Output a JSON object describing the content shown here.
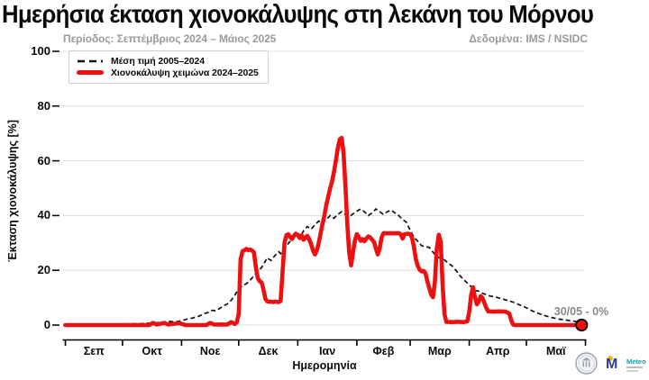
{
  "header": {
    "title": "Ημερήσια έκταση χιονοκάλυψης στη λεκάνη του Μόρνου",
    "subtitle_left": "Περίοδος: Σεπτέμβριος 2024 – Μάιος 2025",
    "subtitle_right": "Δεδομένα: IMS / NSIDC"
  },
  "footer": {
    "meteo_label": "Meteo"
  },
  "colors": {
    "season": "#ee1010",
    "mean": "#111111",
    "grid": "#e0e0e0",
    "muted": "#9a9a9a",
    "meteo_blue": "#2a3f90",
    "meteo_teal": "#16a0a5",
    "meteo_yellow": "#f5b80c"
  },
  "chart_data": {
    "type": "line",
    "title": "Ημερήσια έκταση χιονοκάλυψης στη λεκάνη του Μόρνου",
    "xlabel": "Ημερομηνία",
    "ylabel": "Έκταση χιονοκάλυψης [%]",
    "ylim": [
      0,
      100
    ],
    "y_ticks": [
      0,
      20,
      40,
      60,
      80,
      100
    ],
    "grid": "horizontal",
    "legend_position": "upper-left",
    "x_unit": "days since Sep 1 2024",
    "x_month_boundaries": [
      0,
      30,
      61,
      91,
      122,
      153,
      181,
      212,
      242,
      273
    ],
    "x_month_labels": [
      "Σεπ",
      "Οκτ",
      "Νοε",
      "Δεκ",
      "Ιαν",
      "Φεβ",
      "Μαρ",
      "Απρ",
      "Μαϊ"
    ],
    "end_marker": {
      "day": 271,
      "value": 0,
      "label": "30/05 - 0%"
    },
    "series": [
      {
        "name": "Μέση τιμή 2005–2024",
        "style": "dashed-black",
        "points": [
          [
            0,
            0.3
          ],
          [
            10,
            0.3
          ],
          [
            20,
            0.4
          ],
          [
            30,
            0.4
          ],
          [
            38,
            0.5
          ],
          [
            44,
            0.7
          ],
          [
            48,
            0.9
          ],
          [
            52,
            1.1
          ],
          [
            55,
            1.3
          ],
          [
            58,
            1.2
          ],
          [
            61,
            1.6
          ],
          [
            64,
            2.2
          ],
          [
            67,
            2.6
          ],
          [
            70,
            3.2
          ],
          [
            73,
            4.2
          ],
          [
            75,
            4.6
          ],
          [
            77,
            5.4
          ],
          [
            79,
            5.2
          ],
          [
            81,
            6.1
          ],
          [
            83,
            7
          ],
          [
            85,
            7.7
          ],
          [
            87,
            9
          ],
          [
            89,
            11
          ],
          [
            91,
            13.2
          ],
          [
            93,
            14.4
          ],
          [
            95,
            15.1
          ],
          [
            97,
            16.4
          ],
          [
            99,
            18
          ],
          [
            101,
            19.6
          ],
          [
            103,
            21
          ],
          [
            105,
            23.4
          ],
          [
            106,
            24.6
          ],
          [
            107,
            24
          ],
          [
            108,
            23.6
          ],
          [
            110,
            25.4
          ],
          [
            112,
            26.8
          ],
          [
            113,
            26.1
          ],
          [
            115,
            27.6
          ],
          [
            117,
            29.8
          ],
          [
            119,
            31.4
          ],
          [
            121,
            33
          ],
          [
            122,
            32.4
          ],
          [
            123,
            31.8
          ],
          [
            125,
            34.4
          ],
          [
            127,
            36
          ],
          [
            129,
            35
          ],
          [
            131,
            36.6
          ],
          [
            133,
            38
          ],
          [
            135,
            37.1
          ],
          [
            137,
            38.6
          ],
          [
            139,
            40
          ],
          [
            141,
            39
          ],
          [
            143,
            40.4
          ],
          [
            145,
            41.4
          ],
          [
            147,
            40.4
          ],
          [
            149,
            39.6
          ],
          [
            151,
            40.6
          ],
          [
            153,
            41.6
          ],
          [
            155,
            42.4
          ],
          [
            157,
            41.4
          ],
          [
            159,
            40
          ],
          [
            161,
            41
          ],
          [
            163,
            42.4
          ],
          [
            165,
            41.4
          ],
          [
            167,
            40.4
          ],
          [
            169,
            41.4
          ],
          [
            171,
            42
          ],
          [
            173,
            41
          ],
          [
            175,
            40
          ],
          [
            177,
            38.6
          ],
          [
            179,
            37.6
          ],
          [
            181,
            34.6
          ],
          [
            183,
            32
          ],
          [
            185,
            30.6
          ],
          [
            187,
            29
          ],
          [
            189,
            28.6
          ],
          [
            191,
            28.4
          ],
          [
            193,
            26.6
          ],
          [
            195,
            25
          ],
          [
            197,
            24.4
          ],
          [
            199,
            23.8
          ],
          [
            201,
            22.6
          ],
          [
            203,
            21.6
          ],
          [
            205,
            20
          ],
          [
            207,
            18.2
          ],
          [
            209,
            16.6
          ],
          [
            211,
            15.4
          ],
          [
            213,
            14
          ],
          [
            215,
            12.6
          ],
          [
            217,
            12.4
          ],
          [
            219,
            11.6
          ],
          [
            221,
            11.1
          ],
          [
            223,
            10.6
          ],
          [
            225,
            10.4
          ],
          [
            227,
            10
          ],
          [
            229,
            9.6
          ],
          [
            231,
            9.2
          ],
          [
            233,
            8.8
          ],
          [
            235,
            8.4
          ],
          [
            237,
            7.8
          ],
          [
            239,
            7.2
          ],
          [
            241,
            6.6
          ],
          [
            243,
            6
          ],
          [
            245,
            5.2
          ],
          [
            247,
            4.6
          ],
          [
            249,
            4.1
          ],
          [
            251,
            3.6
          ],
          [
            253,
            3.2
          ],
          [
            255,
            2.8
          ],
          [
            257,
            2.5
          ],
          [
            259,
            2.2
          ],
          [
            261,
            2
          ],
          [
            263,
            1.8
          ],
          [
            265,
            1.6
          ],
          [
            267,
            1.4
          ],
          [
            269,
            1.2
          ],
          [
            271,
            1
          ],
          [
            273,
            0.9
          ]
        ]
      },
      {
        "name": "Χιονοκάλυψη χειμώνα 2024–2025",
        "style": "solid-red",
        "points": [
          [
            0,
            0
          ],
          [
            15,
            0
          ],
          [
            30,
            0
          ],
          [
            44,
            0
          ],
          [
            46,
            0.8
          ],
          [
            48,
            0.2
          ],
          [
            52,
            0.8
          ],
          [
            54,
            0.2
          ],
          [
            60,
            0.7
          ],
          [
            63,
            0
          ],
          [
            74,
            0
          ],
          [
            76,
            0.8
          ],
          [
            78,
            0.2
          ],
          [
            85,
            0.2
          ],
          [
            87,
            1.1
          ],
          [
            89,
            0.4
          ],
          [
            90,
            1
          ],
          [
            91,
            4
          ],
          [
            92,
            24
          ],
          [
            93,
            27
          ],
          [
            94,
            27.3
          ],
          [
            95,
            27.8
          ],
          [
            96,
            27.4
          ],
          [
            97,
            27.6
          ],
          [
            98,
            27.2
          ],
          [
            99,
            26.6
          ],
          [
            100,
            21
          ],
          [
            101,
            17.2
          ],
          [
            102,
            16
          ],
          [
            103,
            15.6
          ],
          [
            104,
            13
          ],
          [
            105,
            9.6
          ],
          [
            106,
            8.7
          ],
          [
            107,
            8.5
          ],
          [
            108,
            8.6
          ],
          [
            109,
            8.4
          ],
          [
            110,
            8.6
          ],
          [
            111,
            8.5
          ],
          [
            112,
            8.4
          ],
          [
            113,
            8.8
          ],
          [
            114,
            19
          ],
          [
            115,
            30
          ],
          [
            116,
            32.8
          ],
          [
            117,
            33.2
          ],
          [
            118,
            32.2
          ],
          [
            119,
            31.4
          ],
          [
            120,
            32.6
          ],
          [
            121,
            33.4
          ],
          [
            122,
            33
          ],
          [
            123,
            31.8
          ],
          [
            124,
            32.8
          ],
          [
            125,
            31.2
          ],
          [
            126,
            31.8
          ],
          [
            127,
            32.6
          ],
          [
            128,
            31.4
          ],
          [
            129,
            29.6
          ],
          [
            130,
            27.2
          ],
          [
            131,
            25.8
          ],
          [
            132,
            27.2
          ],
          [
            133,
            30
          ],
          [
            134,
            33.5
          ],
          [
            135,
            37
          ],
          [
            136,
            40
          ],
          [
            137,
            44
          ],
          [
            138,
            47
          ],
          [
            139,
            50
          ],
          [
            140,
            52.5
          ],
          [
            141,
            56
          ],
          [
            142,
            60
          ],
          [
            143,
            64.5
          ],
          [
            144,
            67.8
          ],
          [
            145,
            68.4
          ],
          [
            146,
            63
          ],
          [
            147,
            51
          ],
          [
            148,
            37
          ],
          [
            149,
            26.5
          ],
          [
            150,
            21.8
          ],
          [
            151,
            26.5
          ],
          [
            152,
            31
          ],
          [
            153,
            33.2
          ],
          [
            154,
            32.2
          ],
          [
            155,
            30.8
          ],
          [
            156,
            31.4
          ],
          [
            157,
            30.6
          ],
          [
            158,
            31.6
          ],
          [
            159,
            32.4
          ],
          [
            160,
            32
          ],
          [
            161,
            31.2
          ],
          [
            162,
            30.4
          ],
          [
            163,
            28
          ],
          [
            164,
            25.8
          ],
          [
            165,
            28
          ],
          [
            166,
            32
          ],
          [
            167,
            33.6
          ],
          [
            169,
            33.5
          ],
          [
            171,
            33.6
          ],
          [
            173,
            33.5
          ],
          [
            175,
            33.6
          ],
          [
            176,
            33.2
          ],
          [
            177,
            31.6
          ],
          [
            178,
            33.2
          ],
          [
            180,
            33.4
          ],
          [
            181,
            33.2
          ],
          [
            182,
            31.8
          ],
          [
            183,
            28.4
          ],
          [
            184,
            24
          ],
          [
            185,
            21.6
          ],
          [
            186,
            20.2
          ],
          [
            187,
            19.6
          ],
          [
            188,
            19.8
          ],
          [
            189,
            19
          ],
          [
            190,
            16
          ],
          [
            191,
            13.6
          ],
          [
            192,
            11.2
          ],
          [
            193,
            10.2
          ],
          [
            194,
            16
          ],
          [
            195,
            28
          ],
          [
            196,
            33
          ],
          [
            197,
            30.5
          ],
          [
            198,
            15
          ],
          [
            199,
            4
          ],
          [
            200,
            1.2
          ],
          [
            203,
            1.1
          ],
          [
            206,
            1.2
          ],
          [
            209,
            1.1
          ],
          [
            211,
            1.4
          ],
          [
            212,
            5
          ],
          [
            213,
            11
          ],
          [
            214,
            13.8
          ],
          [
            215,
            10.2
          ],
          [
            216,
            7.6
          ],
          [
            217,
            8.6
          ],
          [
            218,
            10.6
          ],
          [
            219,
            9.8
          ],
          [
            220,
            8
          ],
          [
            221,
            6.2
          ],
          [
            222,
            5
          ],
          [
            225,
            4.9
          ],
          [
            228,
            5
          ],
          [
            231,
            4.9
          ],
          [
            233,
            4.2
          ],
          [
            234,
            1.8
          ],
          [
            235,
            0.2
          ],
          [
            236,
            0
          ],
          [
            245,
            0
          ],
          [
            255,
            0
          ],
          [
            265,
            0
          ],
          [
            271,
            0
          ]
        ]
      }
    ]
  }
}
